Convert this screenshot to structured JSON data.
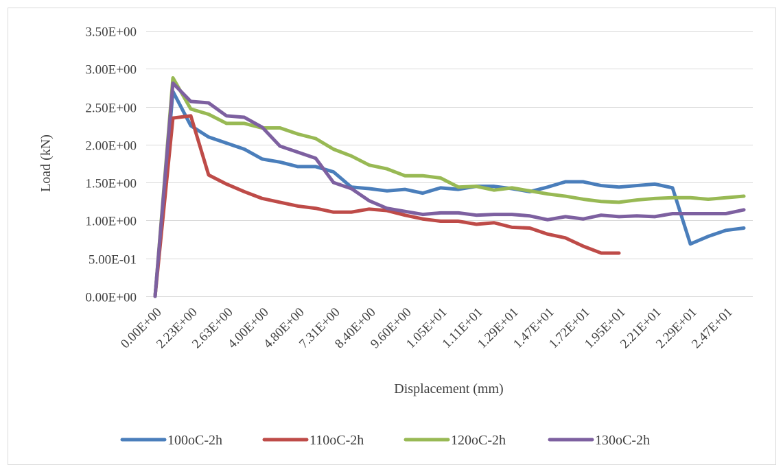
{
  "chart_data": {
    "type": "line",
    "title": "",
    "xlabel": "Displacement (mm)",
    "ylabel": "Load (kN)",
    "ylim": [
      0,
      3.5
    ],
    "yticks": [
      "0.00E+00",
      "5.00E-01",
      "1.00E+00",
      "1.50E+00",
      "2.00E+00",
      "2.50E+00",
      "3.00E+00",
      "3.50E+00"
    ],
    "ytick_values": [
      0,
      0.5,
      1.0,
      1.5,
      2.0,
      2.5,
      3.0,
      3.5
    ],
    "x_categories": [
      "0.00E+00",
      "",
      "2.23E+00",
      "",
      "2.63E+00",
      "",
      "4.00E+00",
      "",
      "4.80E+00",
      "",
      "7.31E+00",
      "",
      "8.40E+00",
      "",
      "9.60E+00",
      "",
      "1.05E+01",
      "",
      "1.11E+01",
      "",
      "1.29E+01",
      "",
      "1.47E+01",
      "",
      "1.72E+01",
      "",
      "1.95E+01",
      "",
      "2.21E+01",
      "",
      "2.29E+01",
      "",
      "2.47E+01",
      ""
    ],
    "grid": true,
    "legend_position": "bottom",
    "series": [
      {
        "name": "100oC-2h",
        "color": "#4a7ebb",
        "values": [
          0,
          2.7,
          2.25,
          2.1,
          2.02,
          1.94,
          1.81,
          1.77,
          1.71,
          1.71,
          1.64,
          1.44,
          1.42,
          1.39,
          1.41,
          1.36,
          1.43,
          1.41,
          1.45,
          1.45,
          1.42,
          1.38,
          1.44,
          1.51,
          1.51,
          1.46,
          1.44,
          1.46,
          1.48,
          1.43,
          0.69,
          0.79,
          0.87,
          0.9
        ]
      },
      {
        "name": "110oC-2h",
        "color": "#be4b48",
        "values": [
          0,
          2.35,
          2.38,
          1.6,
          1.48,
          1.38,
          1.29,
          1.24,
          1.19,
          1.16,
          1.11,
          1.11,
          1.15,
          1.13,
          1.07,
          1.02,
          0.99,
          0.99,
          0.95,
          0.97,
          0.91,
          0.9,
          0.82,
          0.77,
          0.66,
          0.57,
          0.57,
          null,
          null,
          null,
          null,
          null,
          null,
          null
        ]
      },
      {
        "name": "120oC-2h",
        "color": "#98b954",
        "values": [
          0,
          2.88,
          2.47,
          2.4,
          2.28,
          2.28,
          2.22,
          2.22,
          2.14,
          2.08,
          1.94,
          1.85,
          1.73,
          1.68,
          1.59,
          1.59,
          1.56,
          1.44,
          1.45,
          1.4,
          1.43,
          1.39,
          1.35,
          1.32,
          1.28,
          1.25,
          1.24,
          1.27,
          1.29,
          1.3,
          1.3,
          1.28,
          1.3,
          1.32
        ]
      },
      {
        "name": "130oC-2h",
        "color": "#7d60a0",
        "values": [
          0,
          2.81,
          2.57,
          2.55,
          2.38,
          2.36,
          2.23,
          1.98,
          1.9,
          1.82,
          1.5,
          1.42,
          1.26,
          1.16,
          1.12,
          1.08,
          1.1,
          1.1,
          1.07,
          1.08,
          1.08,
          1.06,
          1.01,
          1.05,
          1.02,
          1.07,
          1.05,
          1.06,
          1.05,
          1.09,
          1.09,
          1.09,
          1.09,
          1.14
        ]
      }
    ]
  }
}
